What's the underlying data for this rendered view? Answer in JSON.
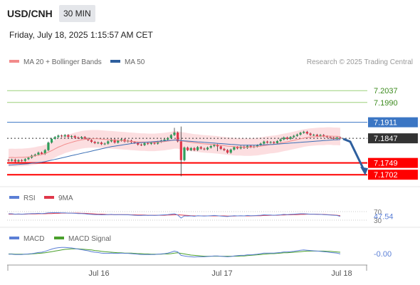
{
  "header": {
    "symbol": "USD/CNH",
    "interval": "30 MIN",
    "timestamp": "Friday, July 18, 2025 1:15:57 AM CET",
    "credit": "Research © 2025 Trading Central"
  },
  "colors": {
    "up": "#2e9e5b",
    "down": "#e0374a",
    "bollinger_fill": "#fbd3d6",
    "ma20": "#f28b8b",
    "ma50": "#3b6fb6",
    "resistance_green": "#9bd07a",
    "resistance_blue": "#3b76c4",
    "support_red": "#ff0000",
    "current_price": "#333333",
    "forecast_arrow": "#2e5f9e",
    "rsi_line": "#5b7fd6",
    "rsi_ma": "#e0374a",
    "macd_line": "#5b7fd6",
    "macd_signal": "#4aa02c"
  },
  "chart_data": [
    {
      "type": "candlestick",
      "panel": "price",
      "legend": [
        {
          "name": "MA 20 + Bollinger Bands",
          "color": "#f28b8b"
        },
        {
          "name": "MA 50",
          "color": "#2e5f9e"
        }
      ],
      "x_ticks": [
        "Jul 16",
        "Jul 17",
        "Jul 18"
      ],
      "ylim": [
        7.166,
        7.212
      ],
      "levels": [
        {
          "label": "7.2037",
          "value": 7.2037,
          "style": "green"
        },
        {
          "label": "7.1990",
          "value": 7.199,
          "style": "green"
        },
        {
          "label": "7.1911",
          "value": 7.1911,
          "style": "blue"
        },
        {
          "label": "7.1847",
          "value": 7.1847,
          "style": "current"
        },
        {
          "label": "7.1749",
          "value": 7.1749,
          "style": "red"
        },
        {
          "label": "7.1702",
          "value": 7.1702,
          "style": "red"
        }
      ],
      "close": [
        7.1758,
        7.1762,
        7.1755,
        7.176,
        7.1757,
        7.1764,
        7.177,
        7.1778,
        7.1782,
        7.179,
        7.1785,
        7.18,
        7.183,
        7.1845,
        7.1852,
        7.1858,
        7.1855,
        7.186,
        7.1853,
        7.1856,
        7.185,
        7.1848,
        7.1852,
        7.1846,
        7.184,
        7.1833,
        7.1828,
        7.183,
        7.1824,
        7.1826,
        7.1835,
        7.1842,
        7.183,
        7.1838,
        7.1843,
        7.1834,
        7.1838,
        7.1832,
        7.1829,
        7.1822,
        7.182,
        7.1828,
        7.1825,
        7.183,
        7.1826,
        7.1833,
        7.1838,
        7.1842,
        7.1848,
        7.186,
        7.187,
        7.1835,
        7.176,
        7.181,
        7.18,
        7.1808,
        7.18,
        7.1812,
        7.1806,
        7.1803,
        7.181,
        7.1816,
        7.1821,
        7.1815,
        7.1805,
        7.18,
        7.179,
        7.1802,
        7.1812,
        7.1807,
        7.1814,
        7.1809,
        7.1817,
        7.1812,
        7.1815,
        7.1819,
        7.1826,
        7.1834,
        7.183,
        7.1832,
        7.1828,
        7.1836,
        7.1843,
        7.185,
        7.1845,
        7.1852,
        7.1857,
        7.1862,
        7.1869,
        7.1873,
        7.1866,
        7.186,
        7.1861,
        7.1856,
        7.186,
        7.1855,
        7.1852,
        7.1849,
        7.1846,
        7.185,
        7.1847
      ],
      "ma20": [
        7.177,
        7.1771,
        7.177,
        7.1771,
        7.1771,
        7.1772,
        7.1773,
        7.1775,
        7.1777,
        7.178,
        7.1782,
        7.1786,
        7.1792,
        7.1798,
        7.1805,
        7.1812,
        7.1817,
        7.1823,
        7.1827,
        7.1831,
        7.1835,
        7.1838,
        7.1841,
        7.1843,
        7.1844,
        7.1845,
        7.1845,
        7.1845,
        7.1844,
        7.1843,
        7.1842,
        7.1841,
        7.184,
        7.1839,
        7.1838,
        7.1837,
        7.1836,
        7.1835,
        7.1834,
        7.1833,
        7.1832,
        7.1832,
        7.1831,
        7.1831,
        7.1831,
        7.1832,
        7.1833,
        7.1834,
        7.1836,
        7.1838,
        7.1841,
        7.1841,
        7.1837,
        7.1835,
        7.1833,
        7.1831,
        7.1829,
        7.1828,
        7.1826,
        7.1825,
        7.1824,
        7.1823,
        7.1822,
        7.1821,
        7.1819,
        7.1818,
        7.1816,
        7.1815,
        7.1814,
        7.1813,
        7.1813,
        7.1812,
        7.1812,
        7.1812,
        7.1813,
        7.1814,
        7.1816,
        7.1818,
        7.182,
        7.1822,
        7.1823,
        7.1825,
        7.1828,
        7.1831,
        7.1833,
        7.1836,
        7.1839,
        7.1842,
        7.1845,
        7.1848,
        7.185,
        7.1852,
        7.1853,
        7.1854,
        7.1855,
        7.1855,
        7.1856,
        7.1856,
        7.1855,
        7.1855,
        7.1854
      ],
      "ma50": [
        7.174,
        7.1741,
        7.1742,
        7.1743,
        7.1744,
        7.1745,
        7.1746,
        7.1748,
        7.1749,
        7.1751,
        7.1752,
        7.1754,
        7.1757,
        7.176,
        7.1763,
        7.1766,
        7.1769,
        7.1772,
        7.1775,
        7.1778,
        7.1781,
        7.1784,
        7.1787,
        7.179,
        7.1793,
        7.1796,
        7.1799,
        7.1802,
        7.1805,
        7.1808,
        7.1811,
        7.1814,
        7.1816,
        7.1818,
        7.182,
        7.1822,
        7.1824,
        7.1826,
        7.1828,
        7.1829,
        7.183,
        7.1831,
        7.1832,
        7.1833,
        7.1834,
        7.1835,
        7.1836,
        7.1837,
        7.1838,
        7.1839,
        7.184,
        7.184,
        7.1838,
        7.1837,
        7.1836,
        7.1835,
        7.1834,
        7.1833,
        7.1832,
        7.1831,
        7.183,
        7.1829,
        7.1828,
        7.1827,
        7.1826,
        7.1825,
        7.1824,
        7.1823,
        7.1822,
        7.1821,
        7.182,
        7.182,
        7.182,
        7.182,
        7.182,
        7.182,
        7.1821,
        7.1821,
        7.1822,
        7.1822,
        7.1823,
        7.1824,
        7.1825,
        7.1826,
        7.1827,
        7.1828,
        7.1829,
        7.183,
        7.1831,
        7.1832,
        7.1833,
        7.1834,
        7.1835,
        7.1836,
        7.1837,
        7.1838,
        7.1839,
        7.184,
        7.1841,
        7.1841,
        7.1842
      ],
      "bollinger_width": 0.0035,
      "forecast": {
        "from": 7.1845,
        "to": 7.1705
      }
    },
    {
      "type": "line",
      "panel": "rsi",
      "legend": [
        {
          "name": "RSI",
          "color": "#5b7fd6"
        },
        {
          "name": "9MA",
          "color": "#e0374a"
        }
      ],
      "ylim": [
        0,
        100
      ],
      "y_ticks": [
        "70",
        "30"
      ],
      "current_value": "47.54",
      "rsi": [
        60,
        60,
        58,
        59,
        58,
        59,
        60,
        61,
        61,
        62,
        61,
        62,
        64,
        65,
        65,
        65,
        64,
        64,
        63,
        63,
        62,
        61,
        61,
        60,
        58,
        57,
        56,
        56,
        55,
        55,
        56,
        57,
        55,
        56,
        56,
        55,
        55,
        54,
        53,
        52,
        52,
        53,
        52,
        53,
        52,
        53,
        54,
        55,
        56,
        58,
        60,
        54,
        40,
        50,
        49,
        50,
        48,
        51,
        50,
        49,
        50,
        51,
        52,
        51,
        49,
        48,
        47,
        49,
        51,
        50,
        51,
        50,
        52,
        51,
        51,
        52,
        53,
        55,
        54,
        54,
        53,
        54,
        55,
        57,
        56,
        57,
        58,
        59,
        60,
        60,
        59,
        58,
        58,
        57,
        57,
        56,
        55,
        54,
        53,
        52,
        47.54
      ],
      "ma9": [
        58,
        58,
        58,
        58,
        58,
        58,
        59,
        59,
        59,
        60,
        60,
        60,
        61,
        61,
        62,
        62,
        63,
        63,
        63,
        63,
        63,
        63,
        62,
        62,
        61,
        60,
        59,
        58,
        58,
        57,
        56,
        56,
        56,
        56,
        56,
        56,
        56,
        55,
        55,
        54,
        54,
        54,
        53,
        53,
        53,
        53,
        53,
        53,
        54,
        54,
        55,
        55,
        54,
        53,
        52,
        51,
        50,
        50,
        50,
        50,
        50,
        50,
        50,
        50,
        50,
        50,
        49,
        49,
        49,
        50,
        50,
        50,
        50,
        50,
        51,
        51,
        51,
        52,
        52,
        53,
        53,
        53,
        54,
        54,
        55,
        55,
        56,
        56,
        57,
        57,
        58,
        58,
        58,
        58,
        57,
        57,
        56,
        55,
        54,
        53,
        51
      ]
    },
    {
      "type": "line",
      "panel": "macd",
      "legend": [
        {
          "name": "MACD",
          "color": "#5b7fd6"
        },
        {
          "name": "MACD Signal",
          "color": "#4aa02c"
        }
      ],
      "ylim": [
        -0.0035,
        0.0035
      ],
      "current_value": "-0.00",
      "macd": [
        -0.0002,
        -0.0002,
        -0.0003,
        -0.0003,
        -0.0003,
        -0.0002,
        -0.0001,
        0.0,
        0.0002,
        0.0004,
        0.0005,
        0.0008,
        0.0012,
        0.0016,
        0.0019,
        0.0021,
        0.0022,
        0.0022,
        0.0021,
        0.002,
        0.0018,
        0.0016,
        0.0014,
        0.0012,
        0.001,
        0.0007,
        0.0005,
        0.0004,
        0.0002,
        0.0001,
        0.0001,
        0.0002,
        0.0001,
        0.0001,
        0.0002,
        0.0001,
        0.0001,
        0.0,
        -0.0001,
        -0.0002,
        -0.0003,
        -0.0003,
        -0.0003,
        -0.0003,
        -0.0003,
        -0.0002,
        -0.0001,
        0.0,
        0.0002,
        0.0005,
        0.0009,
        0.0006,
        -0.0006,
        -0.0008,
        -0.001,
        -0.0011,
        -0.0012,
        -0.0011,
        -0.0011,
        -0.0011,
        -0.001,
        -0.0009,
        -0.0008,
        -0.0008,
        -0.0009,
        -0.001,
        -0.0011,
        -0.001,
        -0.0008,
        -0.0007,
        -0.0006,
        -0.0006,
        -0.0004,
        -0.0004,
        -0.0003,
        -0.0002,
        0.0,
        0.0002,
        0.0002,
        0.0002,
        0.0002,
        0.0003,
        0.0004,
        0.0006,
        0.0006,
        0.0007,
        0.0008,
        0.001,
        0.0012,
        0.0013,
        0.0012,
        0.0011,
        0.001,
        0.0009,
        0.0008,
        0.0007,
        0.0006,
        0.0004,
        0.0003,
        0.0002,
        -0.0001
      ],
      "signal": [
        -0.0001,
        -0.0001,
        -0.0002,
        -0.0002,
        -0.0002,
        -0.0002,
        -0.0002,
        -0.0001,
        0.0,
        0.0001,
        0.0002,
        0.0003,
        0.0005,
        0.0007,
        0.0009,
        0.0011,
        0.0013,
        0.0015,
        0.0016,
        0.0017,
        0.0017,
        0.0017,
        0.0016,
        0.0015,
        0.0014,
        0.0013,
        0.0011,
        0.001,
        0.0008,
        0.0007,
        0.0006,
        0.0005,
        0.0004,
        0.0003,
        0.0003,
        0.0002,
        0.0002,
        0.0002,
        0.0001,
        0.0,
        0.0,
        -0.0001,
        -0.0001,
        -0.0002,
        -0.0002,
        -0.0002,
        -0.0002,
        -0.0001,
        -0.0001,
        0.0,
        0.0002,
        0.0003,
        0.0001,
        -0.0001,
        -0.0003,
        -0.0005,
        -0.0006,
        -0.0007,
        -0.0008,
        -0.0009,
        -0.0009,
        -0.0009,
        -0.0009,
        -0.0009,
        -0.0009,
        -0.0009,
        -0.0009,
        -0.0009,
        -0.0009,
        -0.0009,
        -0.0008,
        -0.0008,
        -0.0007,
        -0.0006,
        -0.0005,
        -0.0004,
        -0.0003,
        -0.0002,
        -0.0001,
        0.0,
        0.0,
        0.0001,
        0.0002,
        0.0003,
        0.0003,
        0.0004,
        0.0005,
        0.0006,
        0.0007,
        0.0008,
        0.0009,
        0.0009,
        0.0009,
        0.0009,
        0.0009,
        0.0009,
        0.0008,
        0.0008,
        0.0007,
        0.0006,
        0.0005
      ]
    }
  ]
}
